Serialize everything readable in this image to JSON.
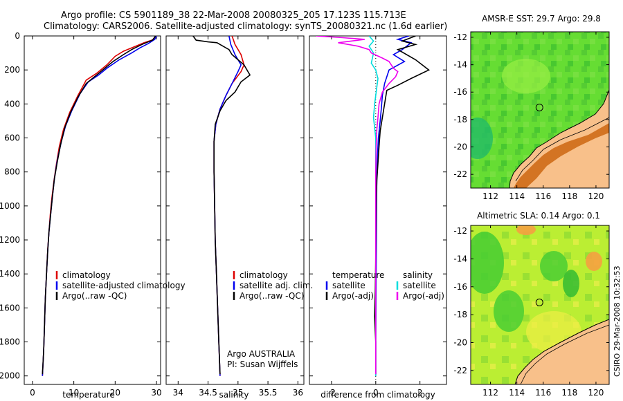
{
  "header": {
    "line1": "Argo profile: CS 5901189_38 22-Mar-2008 20080325_205 17.123S 115.713E",
    "line2": "Climatology: CARS2006. Satellite-adjusted climatology: synTS_20080321.nc (1.6d earlier)"
  },
  "colors": {
    "clim": "#dd0000",
    "sat": "#0000ee",
    "argo": "#000000",
    "cyan": "#00dddd",
    "magenta": "#ee00ee"
  },
  "chart_data": [
    {
      "type": "line",
      "panel": "temperature",
      "xlabel": "temperature",
      "xlim": [
        -2,
        31
      ],
      "ylim": [
        0,
        2050
      ],
      "xticks": [
        0,
        10,
        20,
        30
      ],
      "yticks": [
        0,
        200,
        400,
        600,
        800,
        1000,
        1200,
        1400,
        1600,
        1800,
        2000
      ],
      "legend": [
        "climatology",
        "satellite-adjusted climatology",
        "Argo(..raw -QC)"
      ],
      "series": [
        {
          "name": "climatology",
          "color": "clim",
          "points": [
            [
              30,
              0
            ],
            [
              29.5,
              20
            ],
            [
              27,
              40
            ],
            [
              25,
              60
            ],
            [
              22,
              90
            ],
            [
              20,
              120
            ],
            [
              18,
              170
            ],
            [
              15.5,
              220
            ],
            [
              13,
              260
            ],
            [
              11,
              350
            ],
            [
              9,
              450
            ],
            [
              7.5,
              550
            ],
            [
              6.5,
              650
            ],
            [
              5.8,
              750
            ],
            [
              5.2,
              850
            ],
            [
              4.7,
              950
            ],
            [
              4.3,
              1050
            ],
            [
              4,
              1150
            ],
            [
              3.7,
              1250
            ],
            [
              3.4,
              1400
            ],
            [
              3.1,
              1550
            ],
            [
              2.9,
              1700
            ],
            [
              2.7,
              1850
            ],
            [
              2.4,
              2000
            ]
          ]
        },
        {
          "name": "satellite-adjusted climatology",
          "color": "sat",
          "points": [
            [
              30,
              0
            ],
            [
              29.6,
              20
            ],
            [
              28,
              45
            ],
            [
              26,
              70
            ],
            [
              24,
              100
            ],
            [
              21,
              140
            ],
            [
              18,
              190
            ],
            [
              16,
              230
            ],
            [
              13.5,
              270
            ],
            [
              11.5,
              340
            ],
            [
              9.5,
              440
            ],
            [
              8,
              530
            ],
            [
              7,
              620
            ],
            [
              6,
              730
            ],
            [
              5.3,
              840
            ],
            [
              4.8,
              950
            ],
            [
              4.4,
              1050
            ],
            [
              4,
              1150
            ],
            [
              3.7,
              1260
            ],
            [
              3.4,
              1400
            ],
            [
              3.1,
              1550
            ],
            [
              2.9,
              1700
            ],
            [
              2.7,
              1850
            ],
            [
              2.4,
              2000
            ]
          ]
        },
        {
          "name": "Argo(..raw -QC)",
          "color": "argo",
          "points": [
            [
              29.8,
              0
            ],
            [
              29,
              25
            ],
            [
              26.5,
              50
            ],
            [
              24,
              80
            ],
            [
              22,
              110
            ],
            [
              19.5,
              150
            ],
            [
              17,
              200
            ],
            [
              15,
              240
            ],
            [
              13,
              280
            ],
            [
              11,
              360
            ],
            [
              9.2,
              450
            ],
            [
              7.8,
              540
            ],
            [
              6.8,
              640
            ],
            [
              6,
              740
            ],
            [
              5.3,
              840
            ],
            [
              4.8,
              950
            ],
            [
              4.4,
              1050
            ],
            [
              4,
              1150
            ],
            [
              3.7,
              1260
            ],
            [
              3.4,
              1400
            ],
            [
              3.1,
              1550
            ],
            [
              2.9,
              1700
            ],
            [
              2.7,
              1850
            ],
            [
              2.4,
              1990
            ]
          ]
        }
      ]
    },
    {
      "type": "line",
      "panel": "salinity",
      "xlabel": "salinity",
      "xlim": [
        33.8,
        36.1
      ],
      "ylim": [
        0,
        2050
      ],
      "xticks": [
        34,
        34.5,
        35,
        35.5,
        36
      ],
      "legend": [
        "climatology",
        "satellite adj. clim.",
        "Argo(..raw -QC)"
      ],
      "annotation": [
        "Argo AUSTRALIA",
        "PI: Susan Wijffels"
      ],
      "series": [
        {
          "name": "climatology",
          "color": "clim",
          "points": [
            [
              34.9,
              0
            ],
            [
              34.95,
              50
            ],
            [
              35.05,
              110
            ],
            [
              35.1,
              170
            ],
            [
              35.05,
              210
            ],
            [
              34.9,
              280
            ],
            [
              34.8,
              350
            ],
            [
              34.7,
              430
            ],
            [
              34.63,
              520
            ],
            [
              34.6,
              620
            ],
            [
              34.6,
              800
            ],
            [
              34.61,
              1000
            ],
            [
              34.62,
              1200
            ],
            [
              34.64,
              1400
            ],
            [
              34.66,
              1600
            ],
            [
              34.68,
              1800
            ],
            [
              34.7,
              2000
            ]
          ]
        },
        {
          "name": "satellite adj. clim.",
          "color": "sat",
          "points": [
            [
              34.85,
              0
            ],
            [
              34.88,
              50
            ],
            [
              34.95,
              110
            ],
            [
              35.05,
              170
            ],
            [
              35,
              210
            ],
            [
              34.9,
              280
            ],
            [
              34.8,
              350
            ],
            [
              34.7,
              430
            ],
            [
              34.63,
              520
            ],
            [
              34.6,
              620
            ],
            [
              34.6,
              800
            ],
            [
              34.61,
              1000
            ],
            [
              34.62,
              1200
            ],
            [
              34.64,
              1400
            ],
            [
              34.66,
              1600
            ],
            [
              34.68,
              1800
            ],
            [
              34.7,
              2000
            ]
          ]
        },
        {
          "name": "Argo(..raw -QC)",
          "color": "argo",
          "points": [
            [
              34.25,
              0
            ],
            [
              34.3,
              25
            ],
            [
              34.5,
              35
            ],
            [
              34.65,
              40
            ],
            [
              34.75,
              60
            ],
            [
              34.85,
              80
            ],
            [
              34.9,
              110
            ],
            [
              35,
              140
            ],
            [
              35.1,
              170
            ],
            [
              35.15,
              200
            ],
            [
              35.2,
              230
            ],
            [
              35.05,
              270
            ],
            [
              34.95,
              330
            ],
            [
              34.8,
              380
            ],
            [
              34.7,
              440
            ],
            [
              34.62,
              520
            ],
            [
              34.6,
              620
            ],
            [
              34.6,
              800
            ],
            [
              34.61,
              1000
            ],
            [
              34.62,
              1200
            ],
            [
              34.64,
              1400
            ],
            [
              34.66,
              1600
            ],
            [
              34.68,
              1800
            ],
            [
              34.7,
              1990
            ]
          ]
        }
      ]
    },
    {
      "type": "line",
      "panel": "difference",
      "xlabel": "difference from climatology",
      "xlim": [
        -3,
        3.2
      ],
      "ylim": [
        0,
        2050
      ],
      "xticks": [
        -2,
        0,
        2
      ],
      "legend_temperature": [
        "temperature",
        "satellite",
        "Argo(-adj)"
      ],
      "legend_salinity": [
        "salinity",
        "satellite",
        "Argo(-adj)"
      ],
      "series": [
        {
          "name": "temperature satellite",
          "color": "sat",
          "points": [
            [
              1.5,
              0
            ],
            [
              1,
              20
            ],
            [
              1.6,
              40
            ],
            [
              1.2,
              80
            ],
            [
              0.8,
              110
            ],
            [
              1.3,
              150
            ],
            [
              0.6,
              200
            ],
            [
              0.4,
              280
            ],
            [
              0.3,
              350
            ],
            [
              0.25,
              430
            ],
            [
              0.2,
              500
            ],
            [
              0.12,
              600
            ],
            [
              0.08,
              700
            ],
            [
              0.05,
              800
            ],
            [
              0.04,
              1000
            ],
            [
              0.03,
              1200
            ],
            [
              0.02,
              1400
            ],
            [
              0.01,
              1600
            ],
            [
              0.0,
              1800
            ],
            [
              0.0,
              2000
            ]
          ]
        },
        {
          "name": "temperature Argo(-adj)",
          "color": "argo",
          "points": [
            [
              1.8,
              0
            ],
            [
              1.2,
              30
            ],
            [
              1.8,
              50
            ],
            [
              1.0,
              80
            ],
            [
              1.8,
              140
            ],
            [
              2.4,
              200
            ],
            [
              1.6,
              250
            ],
            [
              1.0,
              290
            ],
            [
              0.5,
              320
            ],
            [
              0.4,
              400
            ],
            [
              0.3,
              480
            ],
            [
              0.2,
              560
            ],
            [
              0.15,
              650
            ],
            [
              0.1,
              750
            ],
            [
              0.05,
              850
            ],
            [
              0.03,
              950
            ],
            [
              0.02,
              1100
            ],
            [
              0.0,
              1300
            ],
            [
              -0.02,
              1500
            ],
            [
              -0.04,
              1600
            ],
            [
              -0.05,
              1650
            ],
            [
              0.0,
              1800
            ],
            [
              0.0,
              1990
            ]
          ]
        },
        {
          "name": "salinity satellite",
          "color": "cyan",
          "points": [
            [
              -0.3,
              0
            ],
            [
              -0.1,
              30
            ],
            [
              -0.3,
              60
            ],
            [
              -0.1,
              100
            ],
            [
              -0.2,
              160
            ],
            [
              0.0,
              200
            ],
            [
              0.1,
              250
            ],
            [
              0.05,
              300
            ],
            [
              -0.05,
              400
            ],
            [
              -0.1,
              480
            ],
            [
              0.0,
              600
            ],
            [
              0.0,
              800
            ],
            [
              0.0,
              1000
            ],
            [
              0.0,
              1200
            ],
            [
              0.0,
              1400
            ],
            [
              0.0,
              1600
            ],
            [
              0.0,
              1800
            ],
            [
              0.0,
              2000
            ]
          ]
        },
        {
          "name": "salinity Argo(-adj)",
          "color": "magenta",
          "points": [
            [
              -2.7,
              0
            ],
            [
              -1.5,
              10
            ],
            [
              -0.5,
              20
            ],
            [
              -1.7,
              40
            ],
            [
              -0.8,
              60
            ],
            [
              -0.3,
              80
            ],
            [
              -0.2,
              100
            ],
            [
              0.3,
              130
            ],
            [
              0.6,
              150
            ],
            [
              0.8,
              190
            ],
            [
              1.0,
              210
            ],
            [
              0.9,
              240
            ],
            [
              0.6,
              280
            ],
            [
              0.3,
              330
            ],
            [
              0.15,
              400
            ],
            [
              0.1,
              480
            ],
            [
              0.05,
              550
            ],
            [
              0.02,
              650
            ],
            [
              0.0,
              800
            ],
            [
              0.0,
              1000
            ],
            [
              0.0,
              1200
            ],
            [
              0.0,
              1400
            ],
            [
              0.0,
              1600
            ],
            [
              0.0,
              1800
            ],
            [
              0.0,
              1990
            ]
          ]
        }
      ]
    },
    {
      "type": "heatmap",
      "panel": "sst_map",
      "title": "AMSR-E SST: 29.7 Argo: 29.8",
      "xlim": [
        110.5,
        121
      ],
      "ylim": [
        -23,
        -11.6
      ],
      "xticks": [
        112,
        114,
        116,
        118,
        120
      ],
      "yticks": [
        -12,
        -14,
        -16,
        -18,
        -20,
        -22
      ],
      "marker": [
        115.713,
        -17.123
      ]
    },
    {
      "type": "heatmap",
      "panel": "sla_map",
      "title": "Altimetric SLA: 0.14 Argo: 0.1",
      "xlim": [
        110.5,
        121
      ],
      "ylim": [
        -23,
        -11.6
      ],
      "xticks": [
        112,
        114,
        116,
        118,
        120
      ],
      "yticks": [
        -12,
        -14,
        -16,
        -18,
        -20,
        -22
      ],
      "marker": [
        115.713,
        -17.123
      ]
    }
  ],
  "footer": {
    "stamp": "CSIRO 29-Mar-2008 10:32:53"
  }
}
